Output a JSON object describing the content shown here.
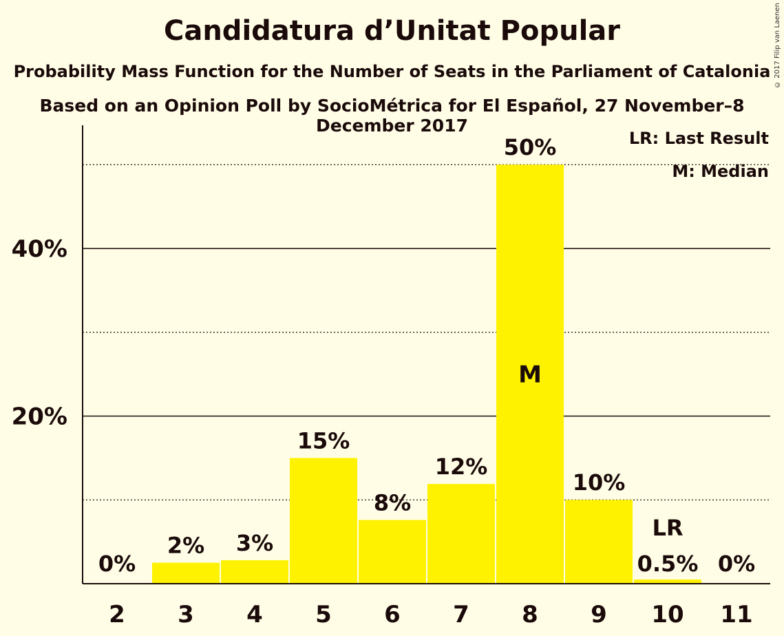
{
  "title": "Candidatura d’Unitat Popular",
  "subtitle": "Probability Mass Function for the Number of Seats in the Parliament of Catalonia",
  "subtitle2": "Based on an Opinion Poll by SocioMétrica for El Español, 27 November–8 December 2017",
  "copyright": "© 2017 Filip van Laenen",
  "legend": {
    "lr": "LR: Last Result",
    "m": "M: Median"
  },
  "colors": {
    "bar": "#FFF200",
    "background": "#FFFDE6",
    "text": "#1a0a0a",
    "median_label": "#FFFDE6"
  },
  "chart_data": {
    "type": "bar",
    "categories": [
      "2",
      "3",
      "4",
      "5",
      "6",
      "7",
      "8",
      "9",
      "10",
      "11"
    ],
    "values": [
      0,
      2.5,
      2.8,
      15,
      7.6,
      11.9,
      50,
      10,
      0.5,
      0
    ],
    "data_labels": [
      "0%",
      "2%",
      "3%",
      "15%",
      "8%",
      "12%",
      "50%",
      "10%",
      "0.5%",
      "0%"
    ],
    "yticks": [
      20,
      40
    ],
    "ytick_labels": [
      "20%",
      "40%"
    ],
    "minor_gridlines": [
      10,
      30,
      50
    ],
    "ylim": [
      0,
      54.7
    ],
    "median_category": "8",
    "median_label": "M",
    "last_result_category": "10",
    "last_result_label": "LR",
    "legend_position": "top-right"
  }
}
